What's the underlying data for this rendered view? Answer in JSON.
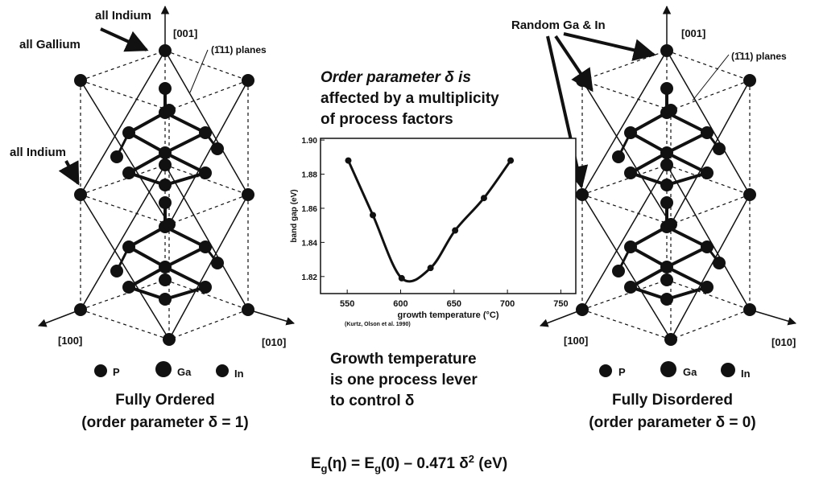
{
  "left": {
    "label_top": "all Indium",
    "label_gallium": "all Gallium",
    "label_mid": "all Indium",
    "axis_001": "[001]",
    "planes": "(1̄11) planes",
    "axis_100": "[100]",
    "axis_010": "[010]",
    "legend": [
      "P",
      "Ga",
      "In"
    ],
    "caption": "Fully Ordered",
    "caption2": "(order parameter δ = 1)"
  },
  "middle": {
    "heading": [
      "Order parameter δ is",
      "affected by a multiplicity",
      "of process factors"
    ],
    "note": [
      "Growth  temperature",
      "is one process lever",
      "to control δ"
    ]
  },
  "chart_data": {
    "type": "scatter",
    "x_label": "growth temperature (°C)",
    "y_label": "band gap (eV)",
    "citation": "(Kurtz, Olson et al. 1990)",
    "x": [
      551,
      574,
      601,
      628,
      651,
      678,
      703
    ],
    "values": [
      1.888,
      1.856,
      1.819,
      1.825,
      1.847,
      1.866,
      1.888
    ],
    "color": "#111",
    "xlim": [
      525,
      764
    ],
    "ylim": [
      1.81,
      1.901
    ],
    "xticks": [
      550,
      600,
      650,
      700,
      750
    ],
    "yticks": [
      1.82,
      1.84,
      1.86,
      1.88,
      {
        "value": 1.9,
        "label": "1.90"
      }
    ]
  },
  "right": {
    "label_top": "Random Ga & In",
    "axis_001": "[001]",
    "planes": "(1̄11) planes",
    "axis_100": "[100]",
    "axis_010": "[010]",
    "legend": [
      "P",
      "Ga",
      "In"
    ],
    "caption": "Fully Disordered",
    "caption2": "(order parameter δ = 0)"
  },
  "equation": [
    "E",
    "g",
    "(η) = E",
    "g",
    "(0) – 0.471 δ",
    "2",
    " (eV)"
  ]
}
